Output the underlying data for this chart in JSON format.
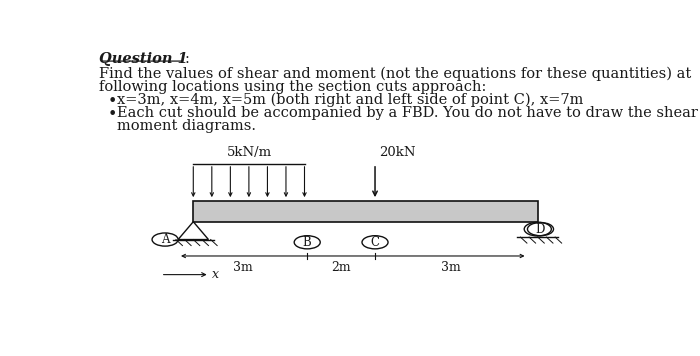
{
  "bg_color": "#ffffff",
  "text_color": "#1a1a1a",
  "title_text": "Question 1",
  "colon": ":",
  "line1": "Find the values of shear and moment (not the equations for these quantities) at",
  "line2": "following locations using the section cuts approach:",
  "bullet1": "x=3m, x=4m, x=5m (both right and left side of point C), x=7m",
  "bullet2_line1": "Each cut should be accompanied by a FBD. You do not have to draw the shear and",
  "bullet2_line2": "moment diagrams.",
  "dist_load_label": "5kN/m",
  "point_load_label": "20kN",
  "dist_3m_label": "3m",
  "dist_2m_label": "2m",
  "dist_3m_right_label": "3m",
  "x_arrow_label": "x",
  "beam_color": "#c8c8c8",
  "edge_color": "#111111"
}
